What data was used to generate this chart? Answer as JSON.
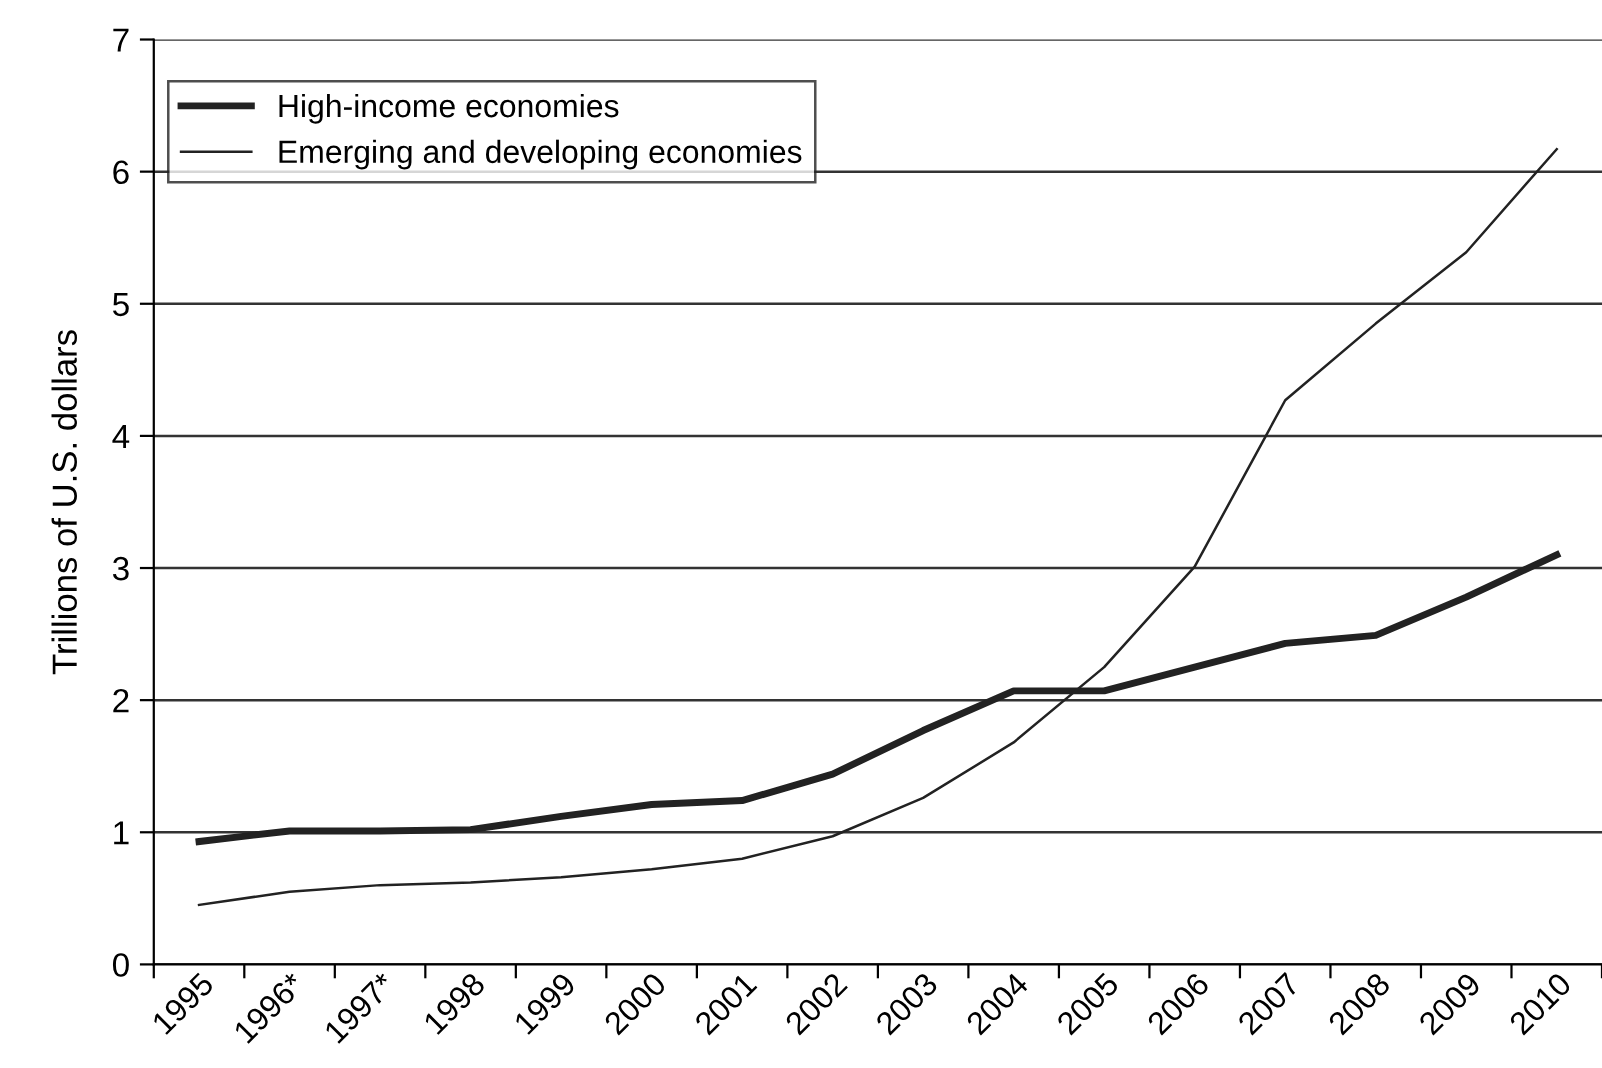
{
  "chart_data": {
    "type": "line",
    "ylabel": "Trillions of U.S. dollars",
    "categories": [
      "1995",
      "1996*",
      "1997*",
      "1998",
      "1999",
      "2000",
      "2001",
      "2002",
      "2003",
      "2004",
      "2005",
      "2006",
      "2007",
      "2008",
      "2009",
      "2010"
    ],
    "series": [
      {
        "name": "High-income economies",
        "color": "#222222",
        "values": [
          0.93,
          1.01,
          1.01,
          1.02,
          1.12,
          1.21,
          1.24,
          1.44,
          1.77,
          2.07,
          2.07,
          2.25,
          2.43,
          2.49,
          2.78,
          3.1
        ]
      },
      {
        "name": "Emerging and developing economies",
        "color": "#222222",
        "values": [
          0.45,
          0.55,
          0.6,
          0.62,
          0.66,
          0.72,
          0.8,
          0.97,
          1.26,
          1.68,
          2.25,
          3.01,
          4.27,
          4.85,
          5.39,
          6.17
        ]
      }
    ],
    "ylim": [
      0,
      7
    ],
    "yticks": [
      0,
      1,
      2,
      3,
      4,
      5,
      6,
      7
    ],
    "grid": "y",
    "legend": "top left",
    "marker": "none",
    "line_style": "solid"
  }
}
